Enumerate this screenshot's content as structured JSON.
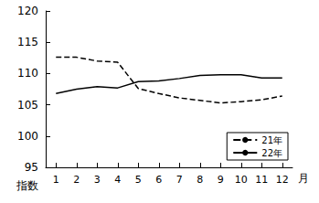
{
  "chart_data": {
    "type": "line",
    "x_label": "月",
    "y_label": "指数",
    "categories": [
      "1",
      "2",
      "3",
      "4",
      "5",
      "6",
      "7",
      "8",
      "9",
      "10",
      "11",
      "12"
    ],
    "series": [
      {
        "name": "21年",
        "color": "#000000",
        "line_style": "dashed",
        "values": [
          112.6,
          112.6,
          112.0,
          111.8,
          107.6,
          106.8,
          106.1,
          105.7,
          105.3,
          105.5,
          105.8,
          106.4
        ]
      },
      {
        "name": "22年",
        "color": "#000000",
        "line_style": "solid",
        "values": [
          106.8,
          107.5,
          107.9,
          107.7,
          108.7,
          108.8,
          109.2,
          109.7,
          109.8,
          109.8,
          109.3,
          109.3
        ]
      }
    ],
    "ylim": [
      95,
      120
    ],
    "yticks": [
      95,
      100,
      105,
      110,
      115,
      120
    ],
    "grid": false,
    "legend": "lower right"
  }
}
